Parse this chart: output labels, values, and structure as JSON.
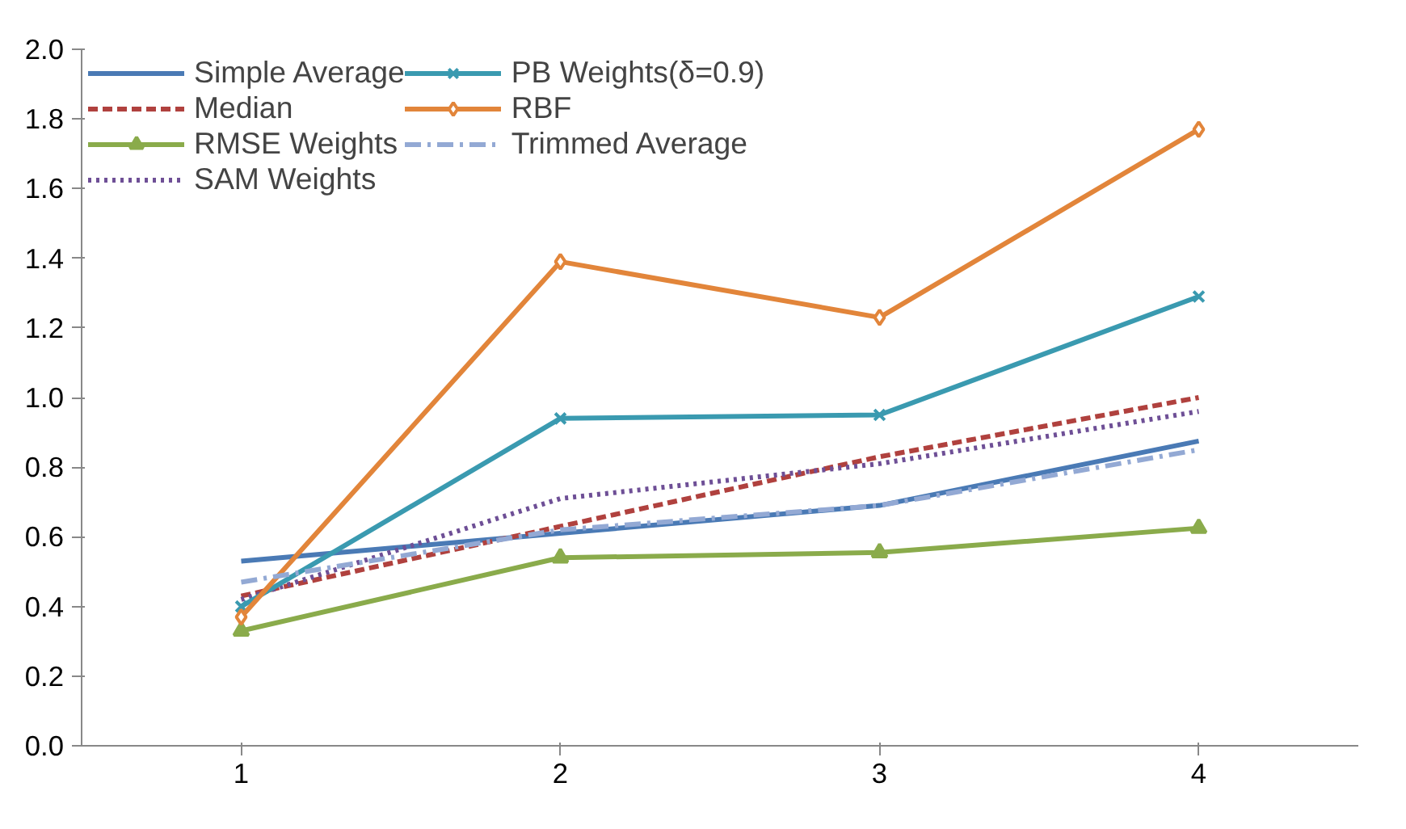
{
  "chart_data": {
    "type": "line",
    "x": [
      1,
      2,
      3,
      4
    ],
    "xlim": [
      0.5,
      4.5
    ],
    "xticks": [
      1,
      2,
      3,
      4
    ],
    "ylim": [
      0,
      2.0
    ],
    "yticks": [
      {
        "value": 0,
        "label": "0.0"
      },
      0.2,
      0.4,
      0.6,
      0.8,
      {
        "value": 1,
        "label": "1.0"
      },
      1.2,
      1.4,
      1.6,
      1.8,
      {
        "value": 2,
        "label": "2.0"
      }
    ],
    "grid": false,
    "legend": "top left",
    "series": [
      {
        "name": "Simple Average",
        "color": "#4a7ab5",
        "values": [
          0.53,
          0.61,
          0.69,
          0.875
        ],
        "line_style": "solid",
        "marker": "none"
      },
      {
        "name": "Median",
        "color": "#b0413e",
        "values": [
          0.43,
          0.63,
          0.83,
          1.0
        ],
        "line_style": "dashed",
        "marker": "none"
      },
      {
        "name": "RMSE Weights",
        "color": "#8aab4b",
        "values": [
          0.33,
          0.54,
          0.555,
          0.625
        ],
        "line_style": "solid",
        "marker": "triangle"
      },
      {
        "name": "SAM Weights",
        "color": "#6e4f96",
        "values": [
          0.42,
          0.71,
          0.81,
          0.96
        ],
        "line_style": "dotted",
        "marker": "none"
      },
      {
        "name": "PB Weights(δ=0.9)",
        "color": "#3a9ab0",
        "values": [
          0.4,
          0.94,
          0.95,
          1.29
        ],
        "line_style": "solid",
        "marker": "cross"
      },
      {
        "name": "RBF",
        "color": "#e2853a",
        "values": [
          0.37,
          1.39,
          1.23,
          1.77
        ],
        "line_style": "solid",
        "marker": "diamond"
      },
      {
        "name": "Trimmed Average",
        "color": "#93a9d4",
        "values": [
          0.47,
          0.62,
          0.69,
          0.85
        ],
        "line_style": "dashdot",
        "marker": "none"
      }
    ]
  }
}
